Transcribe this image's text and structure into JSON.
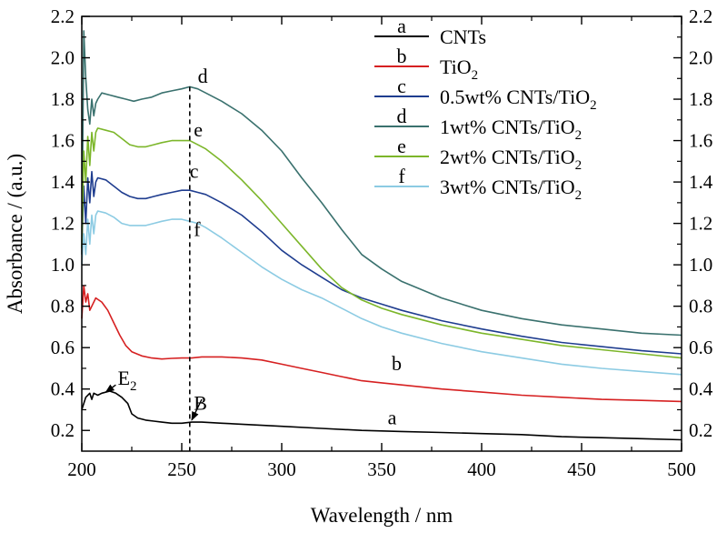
{
  "chart_data": {
    "type": "line",
    "xlabel": "Wavelength / nm",
    "ylabel": "Absorbance / (a.u.)",
    "xlim": [
      200,
      500
    ],
    "ylim": [
      0.1,
      2.2
    ],
    "x_ticks": [
      200,
      250,
      300,
      350,
      400,
      450,
      500
    ],
    "y_ticks": [
      0.2,
      0.4,
      0.6,
      0.8,
      1.0,
      1.2,
      1.4,
      1.6,
      1.8,
      2.0,
      2.2
    ],
    "x_tick_labels": [
      "200",
      "250",
      "300",
      "350",
      "400",
      "450",
      "500"
    ],
    "y_tick_labels": [
      "0.2",
      "0.4",
      "0.6",
      "0.8",
      "1.0",
      "1.2",
      "1.4",
      "1.6",
      "1.8",
      "2.0",
      "2.2"
    ],
    "grid": false,
    "legend_position": "top-right",
    "reference_line_x": 254,
    "series": [
      {
        "letter": "a",
        "name": "CNTs",
        "name_sub": "",
        "color": "#000000",
        "label_at": [
          353,
          0.23
        ],
        "points": [
          [
            200,
            0.3
          ],
          [
            202,
            0.36
          ],
          [
            204,
            0.38
          ],
          [
            205,
            0.35
          ],
          [
            206,
            0.38
          ],
          [
            208,
            0.37
          ],
          [
            210,
            0.38
          ],
          [
            214,
            0.39
          ],
          [
            217,
            0.38
          ],
          [
            220,
            0.36
          ],
          [
            223,
            0.33
          ],
          [
            225,
            0.28
          ],
          [
            228,
            0.26
          ],
          [
            232,
            0.25
          ],
          [
            236,
            0.245
          ],
          [
            240,
            0.24
          ],
          [
            245,
            0.235
          ],
          [
            250,
            0.235
          ],
          [
            255,
            0.24
          ],
          [
            260,
            0.24
          ],
          [
            270,
            0.235
          ],
          [
            280,
            0.23
          ],
          [
            300,
            0.22
          ],
          [
            320,
            0.21
          ],
          [
            340,
            0.2
          ],
          [
            360,
            0.195
          ],
          [
            380,
            0.19
          ],
          [
            400,
            0.185
          ],
          [
            420,
            0.18
          ],
          [
            440,
            0.17
          ],
          [
            460,
            0.165
          ],
          [
            480,
            0.16
          ],
          [
            500,
            0.155
          ]
        ]
      },
      {
        "letter": "b",
        "name": "TiO",
        "name_sub": "2",
        "color": "#d62021",
        "label_at": [
          355,
          0.49
        ],
        "points": [
          [
            200,
            0.74
          ],
          [
            201,
            0.9
          ],
          [
            202,
            0.82
          ],
          [
            203,
            0.86
          ],
          [
            204,
            0.78
          ],
          [
            205,
            0.8
          ],
          [
            207,
            0.84
          ],
          [
            210,
            0.82
          ],
          [
            213,
            0.78
          ],
          [
            216,
            0.72
          ],
          [
            219,
            0.66
          ],
          [
            222,
            0.61
          ],
          [
            225,
            0.58
          ],
          [
            230,
            0.56
          ],
          [
            235,
            0.55
          ],
          [
            240,
            0.545
          ],
          [
            245,
            0.548
          ],
          [
            250,
            0.55
          ],
          [
            255,
            0.55
          ],
          [
            260,
            0.555
          ],
          [
            270,
            0.555
          ],
          [
            280,
            0.55
          ],
          [
            290,
            0.54
          ],
          [
            300,
            0.52
          ],
          [
            310,
            0.5
          ],
          [
            320,
            0.48
          ],
          [
            330,
            0.46
          ],
          [
            340,
            0.44
          ],
          [
            350,
            0.43
          ],
          [
            360,
            0.42
          ],
          [
            380,
            0.4
          ],
          [
            400,
            0.385
          ],
          [
            420,
            0.37
          ],
          [
            440,
            0.36
          ],
          [
            460,
            0.35
          ],
          [
            480,
            0.345
          ],
          [
            500,
            0.34
          ]
        ]
      },
      {
        "letter": "c",
        "name": "0.5wt% CNTs/TiO",
        "name_sub": "2",
        "color": "#1f3d8f",
        "label_at": [
          254,
          1.42
        ],
        "points": [
          [
            200,
            1.08
          ],
          [
            201,
            1.38
          ],
          [
            202,
            1.2
          ],
          [
            203,
            1.42
          ],
          [
            204,
            1.3
          ],
          [
            205,
            1.45
          ],
          [
            206,
            1.33
          ],
          [
            207,
            1.4
          ],
          [
            208,
            1.42
          ],
          [
            212,
            1.41
          ],
          [
            216,
            1.38
          ],
          [
            220,
            1.35
          ],
          [
            224,
            1.33
          ],
          [
            228,
            1.32
          ],
          [
            232,
            1.32
          ],
          [
            236,
            1.33
          ],
          [
            240,
            1.34
          ],
          [
            245,
            1.35
          ],
          [
            250,
            1.36
          ],
          [
            254,
            1.36
          ],
          [
            258,
            1.35
          ],
          [
            262,
            1.34
          ],
          [
            270,
            1.3
          ],
          [
            280,
            1.24
          ],
          [
            290,
            1.16
          ],
          [
            300,
            1.07
          ],
          [
            310,
            1.0
          ],
          [
            320,
            0.94
          ],
          [
            330,
            0.88
          ],
          [
            340,
            0.84
          ],
          [
            350,
            0.81
          ],
          [
            360,
            0.78
          ],
          [
            380,
            0.73
          ],
          [
            400,
            0.69
          ],
          [
            420,
            0.655
          ],
          [
            440,
            0.625
          ],
          [
            460,
            0.605
          ],
          [
            480,
            0.585
          ],
          [
            500,
            0.57
          ]
        ]
      },
      {
        "letter": "d",
        "name": "1wt% CNTs/TiO",
        "name_sub": "2",
        "color": "#3a716e",
        "label_at": [
          258,
          1.88
        ],
        "points": [
          [
            200,
            1.05
          ],
          [
            201,
            2.13
          ],
          [
            202,
            1.9
          ],
          [
            203,
            1.75
          ],
          [
            204,
            1.68
          ],
          [
            205,
            1.8
          ],
          [
            206,
            1.72
          ],
          [
            207,
            1.78
          ],
          [
            208,
            1.8
          ],
          [
            210,
            1.83
          ],
          [
            214,
            1.82
          ],
          [
            218,
            1.81
          ],
          [
            222,
            1.8
          ],
          [
            226,
            1.79
          ],
          [
            230,
            1.8
          ],
          [
            235,
            1.81
          ],
          [
            240,
            1.83
          ],
          [
            245,
            1.84
          ],
          [
            250,
            1.85
          ],
          [
            254,
            1.86
          ],
          [
            258,
            1.85
          ],
          [
            262,
            1.83
          ],
          [
            270,
            1.79
          ],
          [
            280,
            1.73
          ],
          [
            290,
            1.65
          ],
          [
            300,
            1.55
          ],
          [
            310,
            1.42
          ],
          [
            320,
            1.3
          ],
          [
            330,
            1.17
          ],
          [
            340,
            1.05
          ],
          [
            350,
            0.98
          ],
          [
            360,
            0.92
          ],
          [
            380,
            0.84
          ],
          [
            400,
            0.78
          ],
          [
            420,
            0.74
          ],
          [
            440,
            0.71
          ],
          [
            460,
            0.69
          ],
          [
            480,
            0.67
          ],
          [
            500,
            0.66
          ]
        ]
      },
      {
        "letter": "e",
        "name": "2wt% CNTs/TiO",
        "name_sub": "2",
        "color": "#7cb62a",
        "label_at": [
          256,
          1.62
        ],
        "points": [
          [
            200,
            1.08
          ],
          [
            201,
            1.55
          ],
          [
            202,
            1.4
          ],
          [
            203,
            1.62
          ],
          [
            204,
            1.48
          ],
          [
            205,
            1.64
          ],
          [
            206,
            1.55
          ],
          [
            207,
            1.64
          ],
          [
            208,
            1.66
          ],
          [
            212,
            1.65
          ],
          [
            216,
            1.64
          ],
          [
            220,
            1.61
          ],
          [
            224,
            1.58
          ],
          [
            228,
            1.57
          ],
          [
            232,
            1.57
          ],
          [
            236,
            1.58
          ],
          [
            240,
            1.59
          ],
          [
            245,
            1.6
          ],
          [
            250,
            1.6
          ],
          [
            254,
            1.6
          ],
          [
            258,
            1.58
          ],
          [
            262,
            1.56
          ],
          [
            270,
            1.5
          ],
          [
            280,
            1.41
          ],
          [
            290,
            1.31
          ],
          [
            300,
            1.2
          ],
          [
            310,
            1.09
          ],
          [
            320,
            0.98
          ],
          [
            330,
            0.89
          ],
          [
            340,
            0.83
          ],
          [
            350,
            0.79
          ],
          [
            360,
            0.76
          ],
          [
            380,
            0.71
          ],
          [
            400,
            0.67
          ],
          [
            420,
            0.64
          ],
          [
            440,
            0.61
          ],
          [
            460,
            0.59
          ],
          [
            480,
            0.57
          ],
          [
            500,
            0.55
          ]
        ]
      },
      {
        "letter": "f",
        "name": "3wt% CNTs/TiO",
        "name_sub": "2",
        "color": "#8ccbe3",
        "label_at": [
          256,
          1.14
        ],
        "points": [
          [
            200,
            1.0
          ],
          [
            201,
            1.15
          ],
          [
            202,
            1.05
          ],
          [
            203,
            1.22
          ],
          [
            204,
            1.1
          ],
          [
            205,
            1.24
          ],
          [
            206,
            1.15
          ],
          [
            207,
            1.24
          ],
          [
            208,
            1.26
          ],
          [
            212,
            1.25
          ],
          [
            216,
            1.23
          ],
          [
            220,
            1.2
          ],
          [
            224,
            1.19
          ],
          [
            228,
            1.19
          ],
          [
            232,
            1.19
          ],
          [
            236,
            1.2
          ],
          [
            240,
            1.21
          ],
          [
            245,
            1.22
          ],
          [
            250,
            1.22
          ],
          [
            254,
            1.21
          ],
          [
            258,
            1.2
          ],
          [
            262,
            1.18
          ],
          [
            270,
            1.13
          ],
          [
            280,
            1.06
          ],
          [
            290,
            0.99
          ],
          [
            300,
            0.93
          ],
          [
            310,
            0.88
          ],
          [
            320,
            0.84
          ],
          [
            330,
            0.79
          ],
          [
            340,
            0.74
          ],
          [
            350,
            0.7
          ],
          [
            360,
            0.67
          ],
          [
            380,
            0.62
          ],
          [
            400,
            0.58
          ],
          [
            420,
            0.55
          ],
          [
            440,
            0.52
          ],
          [
            460,
            0.5
          ],
          [
            480,
            0.485
          ],
          [
            500,
            0.47
          ]
        ]
      }
    ],
    "annotations": [
      {
        "id": "E",
        "text": "E",
        "sub": "2",
        "text_at": [
          218,
          0.42
        ],
        "arrow_from": [
          217,
          0.42
        ],
        "arrow_to": [
          212,
          0.385
        ]
      },
      {
        "id": "B",
        "text": "B",
        "sub": "",
        "text_at": [
          256,
          0.3
        ],
        "arrow_from": [
          260,
          0.35
        ],
        "arrow_to": [
          255,
          0.25
        ]
      }
    ]
  }
}
